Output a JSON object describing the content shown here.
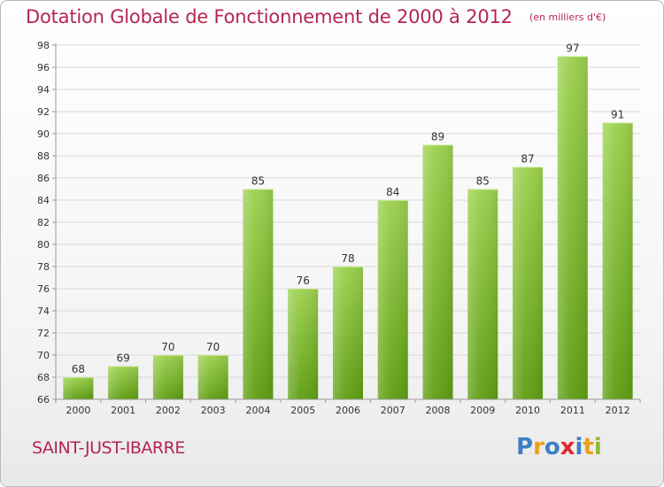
{
  "title": "Dotation Globale de Fonctionnement de 2000 à 2012",
  "subtitle": "(en milliers d'€)",
  "town": "SAINT-JUST-IBARRE",
  "logo": {
    "text": "Proxiti",
    "letters": [
      {
        "char": "P",
        "color": "#3c7fc4"
      },
      {
        "char": "r",
        "color": "#e8a21a"
      },
      {
        "char": "o",
        "color": "#3c7fc4"
      },
      {
        "char": "x",
        "color": "#e0262e"
      },
      {
        "char": "i",
        "color": "#3c7fc4"
      },
      {
        "char": "t",
        "color": "#e8a21a"
      },
      {
        "char": "i",
        "color": "#8ab83a"
      }
    ]
  },
  "colors": {
    "accent": "#b4264f",
    "bar_top": "#9cd14d",
    "bar_bottom": "#5e9e12",
    "grid": "#d8d8d8",
    "axis": "#999999",
    "text": "#333333"
  },
  "chart_data": {
    "type": "bar",
    "title": "Dotation Globale de Fonctionnement de 2000 à 2012",
    "subtitle": "(en milliers d'€)",
    "categories": [
      "2000",
      "2001",
      "2002",
      "2003",
      "2004",
      "2005",
      "2006",
      "2007",
      "2008",
      "2009",
      "2010",
      "2011",
      "2012"
    ],
    "values": [
      68,
      69,
      70,
      70,
      85,
      76,
      78,
      84,
      89,
      85,
      87,
      97,
      91
    ],
    "data_labels": [
      "68",
      "69",
      "70",
      "70",
      "85",
      "76",
      "78",
      "84",
      "89",
      "85",
      "87",
      "97",
      "91"
    ],
    "yticks": [
      "66",
      "68",
      "70",
      "72",
      "74",
      "76",
      "78",
      "80",
      "82",
      "84",
      "86",
      "88",
      "90",
      "92",
      "94",
      "96",
      "98"
    ],
    "ylim": [
      66,
      98
    ],
    "xlabel": "",
    "ylabel": "",
    "grid": true,
    "legend": "none"
  }
}
